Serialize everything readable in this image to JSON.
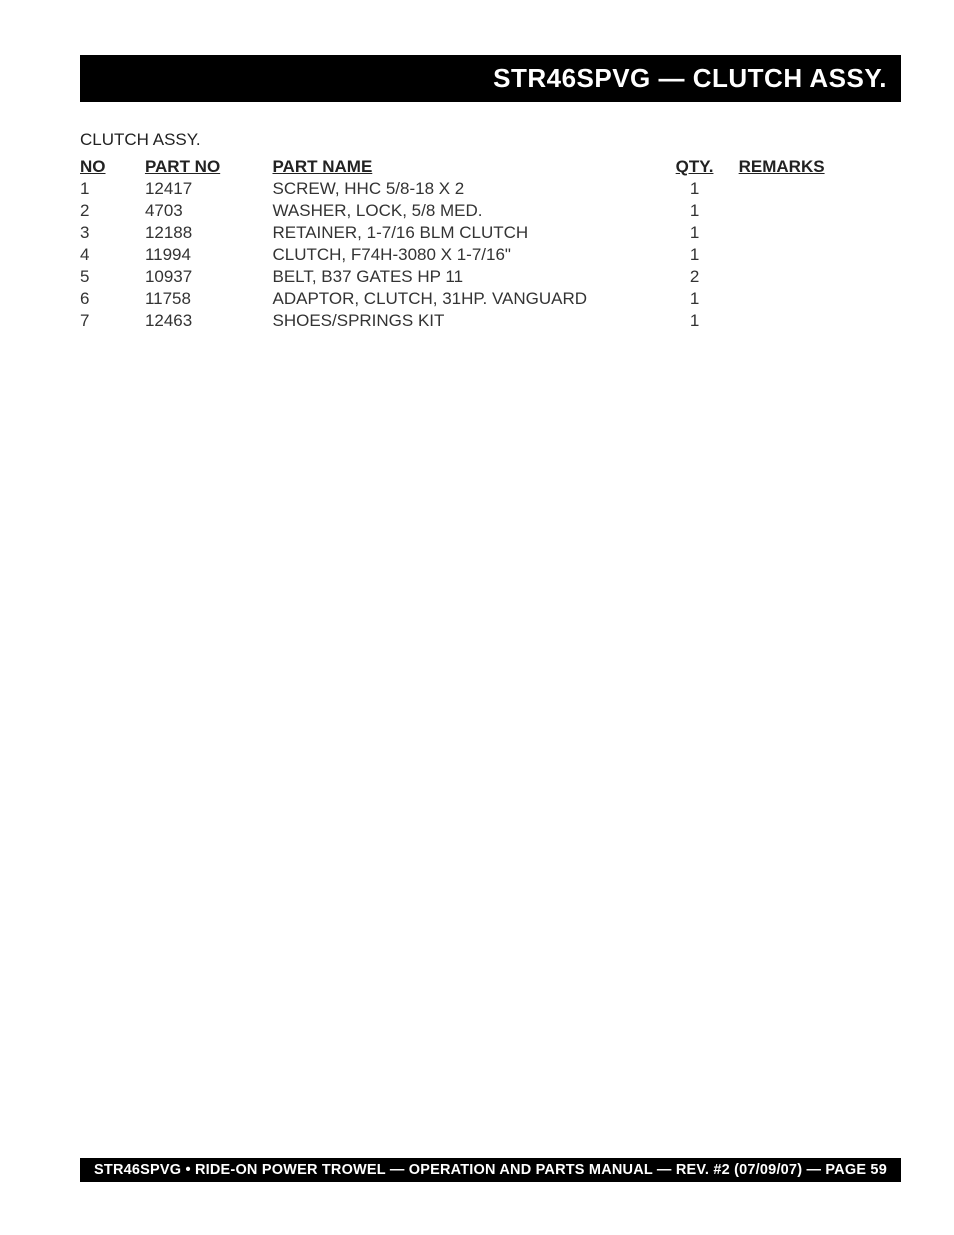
{
  "header": {
    "title": "STR46SPVG — CLUTCH  ASSY."
  },
  "subtitle": "CLUTCH ASSY.",
  "table": {
    "columns": {
      "no": "NO",
      "partno": "PART NO",
      "partname": "PART NAME",
      "qty": "QTY.",
      "remarks": "REMARKS"
    },
    "rows": [
      {
        "no": "1",
        "partno": "12417",
        "partname": "SCREW, HHC 5/8-18 X 2",
        "qty": "1",
        "remarks": ""
      },
      {
        "no": "2",
        "partno": "4703",
        "partname": "WASHER, LOCK, 5/8 MED.",
        "qty": "1",
        "remarks": ""
      },
      {
        "no": "3",
        "partno": "12188",
        "partname": "RETAINER, 1-7/16 BLM CLUTCH",
        "qty": "1",
        "remarks": ""
      },
      {
        "no": "4",
        "partno": "11994",
        "partname": "CLUTCH, F74H-3080 X 1-7/16\"",
        "qty": "1",
        "remarks": ""
      },
      {
        "no": "5",
        "partno": "10937",
        "partname": "BELT, B37 GATES HP 11",
        "qty": "2",
        "remarks": ""
      },
      {
        "no": "6",
        "partno": "11758",
        "partname": "ADAPTOR, CLUTCH, 31HP. VANGUARD",
        "qty": "1",
        "remarks": ""
      },
      {
        "no": "7",
        "partno": "12463",
        "partname": "SHOES/SPRINGS KIT",
        "qty": "1",
        "remarks": ""
      }
    ]
  },
  "footer": {
    "text": "STR46SPVG • RIDE-ON POWER TROWEL —  OPERATION AND PARTS MANUAL — REV. #2 (07/09/07) — PAGE 59"
  },
  "style": {
    "background_color": "#ffffff",
    "header_bg": "#000000",
    "header_color": "#ffffff",
    "footer_bg": "#000000",
    "footer_color": "#ffffff",
    "text_color": "#222222",
    "header_fontsize": 26,
    "body_fontsize": 17,
    "footer_fontsize": 14.5
  }
}
